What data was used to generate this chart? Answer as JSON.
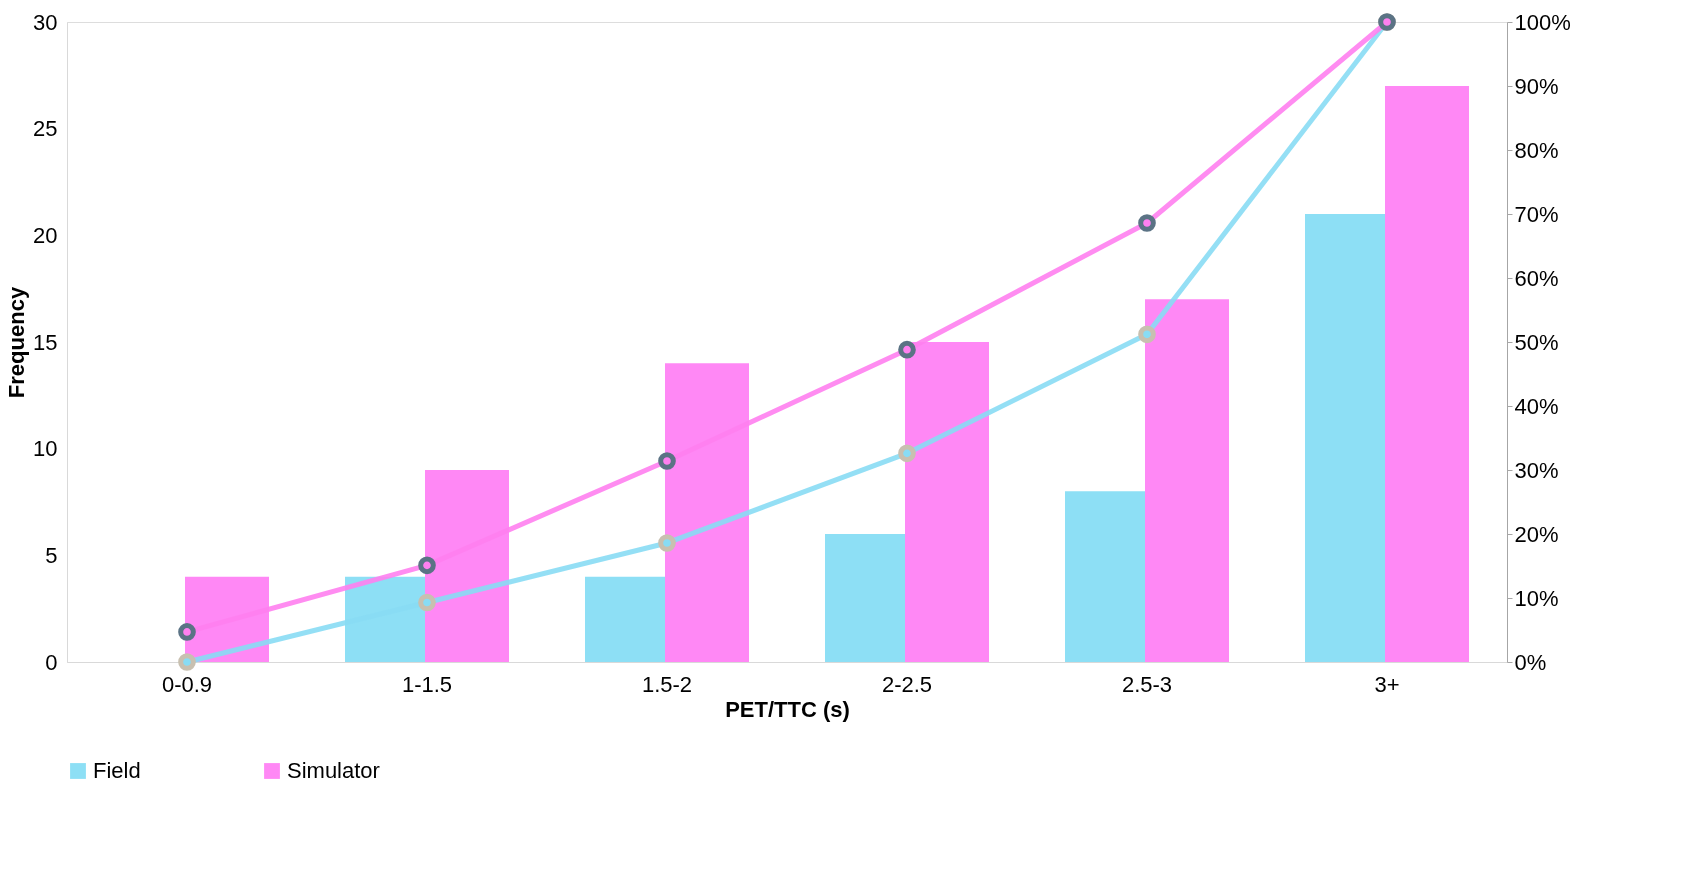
{
  "chart_data": {
    "type": "bar",
    "xlabel": "PET/TTC (s)",
    "ylabel": "Frequency",
    "categories": [
      "0-0.9",
      "1-1.5",
      "1.5-2",
      "2-2.5",
      "2.5-3",
      "3+"
    ],
    "series": [
      {
        "name": "Field",
        "color": "#8ddff5",
        "values": [
          0,
          4,
          4,
          6,
          8,
          21
        ]
      },
      {
        "name": "Simulator",
        "color": "#ff88f5",
        "values": [
          4,
          9,
          14,
          15,
          17,
          27
        ]
      },
      {
        "type": "line",
        "axis": "y2",
        "color": "#88dcf4",
        "values": [
          0,
          9.3,
          18.6,
          32.6,
          51.2,
          100
        ]
      },
      {
        "type": "line",
        "axis": "y2",
        "color": "#ff80f0",
        "values": [
          4.7,
          15.1,
          31.4,
          48.8,
          68.6,
          100
        ]
      }
    ],
    "ylim": [
      0,
      30
    ],
    "yticks": [
      0,
      5,
      10,
      15,
      20,
      25,
      30
    ],
    "y2lim": [
      0,
      100
    ],
    "y2ticks": [
      {
        "value": 0,
        "label": "0%"
      },
      {
        "value": 10,
        "label": "10%"
      },
      {
        "value": 20,
        "label": "20%"
      },
      {
        "value": 30,
        "label": "30%"
      },
      {
        "value": 40,
        "label": "40%"
      },
      {
        "value": 50,
        "label": "50%"
      },
      {
        "value": 60,
        "label": "60%"
      },
      {
        "value": 70,
        "label": "70%"
      },
      {
        "value": 80,
        "label": "80%"
      },
      {
        "value": 90,
        "label": "90%"
      },
      {
        "value": 100,
        "label": "100%"
      }
    ],
    "grid": false,
    "legend": "bottom",
    "marker": "circle"
  }
}
